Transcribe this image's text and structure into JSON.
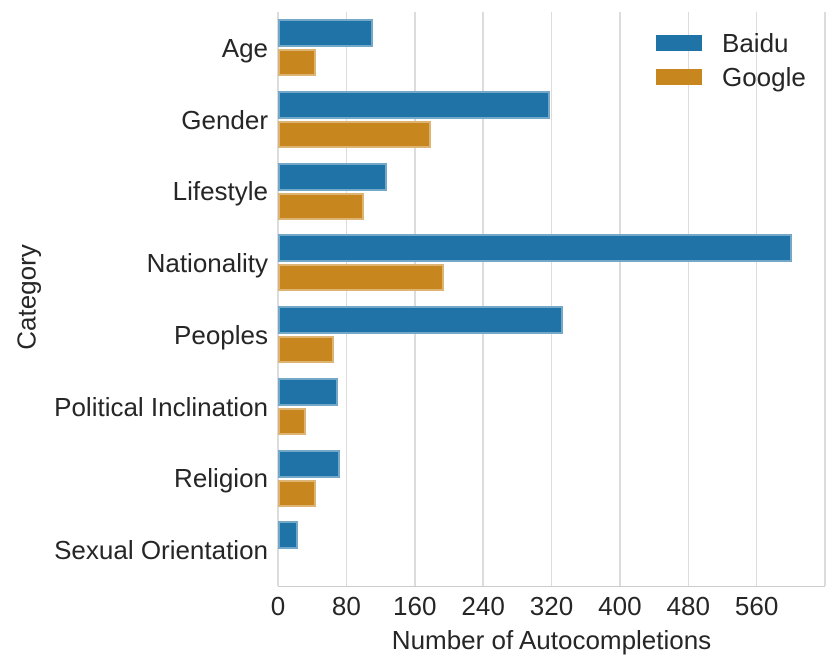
{
  "colors": {
    "baidu": "#1f73a6",
    "google": "#c8871e",
    "gridline": "#dcdcdc",
    "axis_line": "#cccccc",
    "text": "#262626",
    "background": "#ffffff"
  },
  "legend": {
    "entries": [
      {
        "label": "Baidu",
        "color": "#1f73a6"
      },
      {
        "label": "Google",
        "color": "#c8871e"
      }
    ],
    "position": "upper right, inside plot, no frame"
  },
  "chart_data": {
    "type": "bar",
    "orientation": "horizontal",
    "title": "",
    "xlabel": "Number of Autocompletions",
    "ylabel": "Category",
    "categories": [
      "Age",
      "Gender",
      "Lifestyle",
      "Nationality",
      "Peoples",
      "Political Inclination",
      "Religion",
      "Sexual Orientation"
    ],
    "series": [
      {
        "name": "Baidu",
        "color": "#1f73a6",
        "values": [
          111,
          318,
          127,
          601,
          333,
          70,
          72,
          23
        ]
      },
      {
        "name": "Google",
        "color": "#c8871e",
        "values": [
          44,
          179,
          101,
          194,
          66,
          33,
          45,
          0
        ]
      }
    ],
    "xlim": [
      0,
      640
    ],
    "xticks": [
      0,
      80,
      160,
      240,
      320,
      400,
      480,
      560
    ],
    "grid": "vertical gridlines on, light gray, white background",
    "legend_position": "upper right"
  }
}
